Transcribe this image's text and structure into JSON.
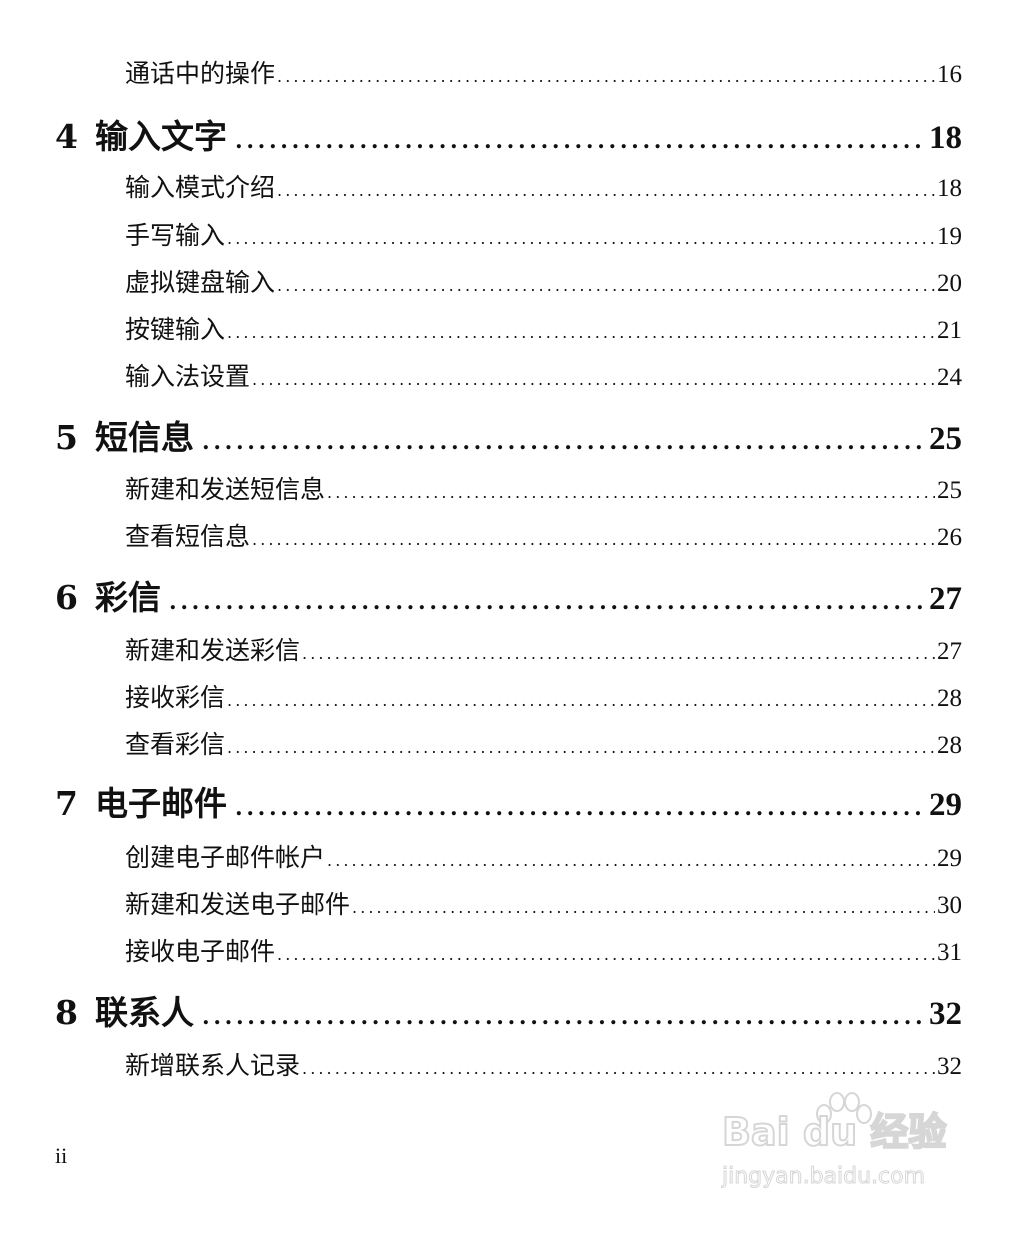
{
  "toc": [
    {
      "level": "sub",
      "title": "通话中的操作",
      "page": "16"
    },
    {
      "level": "chapter",
      "number": "4",
      "title": "输入文字",
      "page": "18"
    },
    {
      "level": "sub",
      "title": "输入模式介绍",
      "page": "18"
    },
    {
      "level": "sub",
      "title": "手写输入",
      "page": "19"
    },
    {
      "level": "sub",
      "title": "虚拟键盘输入",
      "page": "20"
    },
    {
      "level": "sub",
      "title": "按键输入",
      "page": "21"
    },
    {
      "level": "sub",
      "title": "输入法设置",
      "page": "24"
    },
    {
      "level": "chapter",
      "number": "5",
      "title": "短信息",
      "page": "25"
    },
    {
      "level": "sub",
      "title": "新建和发送短信息",
      "page": "25"
    },
    {
      "level": "sub",
      "title": "查看短信息",
      "page": "26"
    },
    {
      "level": "chapter",
      "number": "6",
      "title": "彩信",
      "page": "27"
    },
    {
      "level": "sub",
      "title": "新建和发送彩信",
      "page": "27"
    },
    {
      "level": "sub",
      "title": "接收彩信",
      "page": "28"
    },
    {
      "level": "sub",
      "title": "查看彩信",
      "page": "28"
    },
    {
      "level": "chapter",
      "number": "7",
      "title": "电子邮件",
      "page": "29"
    },
    {
      "level": "sub",
      "title": "创建电子邮件帐户",
      "page": "29"
    },
    {
      "level": "sub",
      "title": "新建和发送电子邮件",
      "page": "30"
    },
    {
      "level": "sub",
      "title": "接收电子邮件",
      "page": "31"
    },
    {
      "level": "chapter",
      "number": "8",
      "title": "联系人",
      "page": "32"
    },
    {
      "level": "sub",
      "title": "新增联系人记录",
      "page": "32"
    }
  ],
  "folio": "ii",
  "watermark": {
    "brand": "Bai du 经验",
    "url": "jingyan.baidu.com"
  }
}
